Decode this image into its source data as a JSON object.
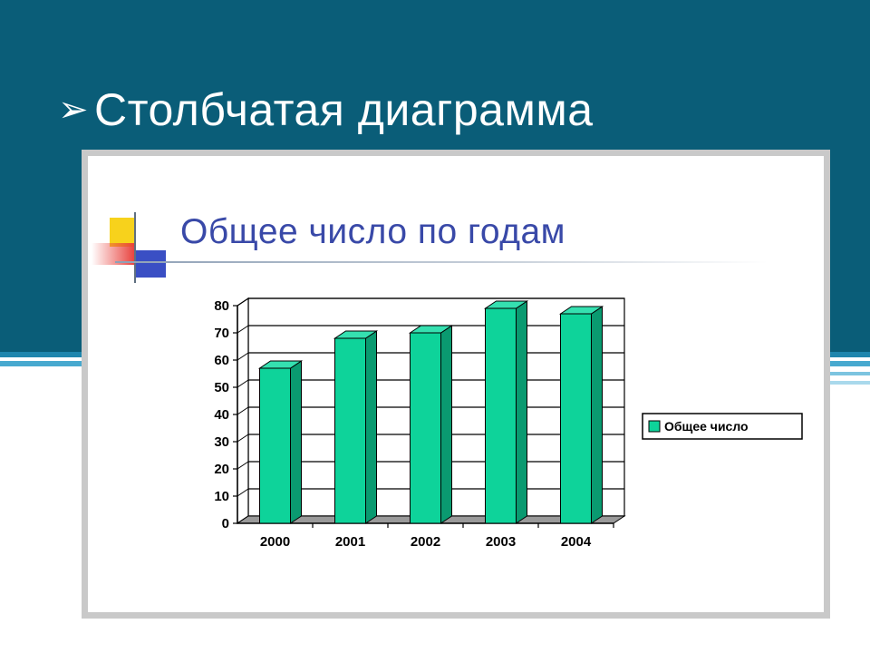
{
  "slide": {
    "title": "Столбчатая диаграмма",
    "bullet_icon": "arrow-bullet-icon",
    "colors": {
      "header": "#0a5d78",
      "stripe": "#48a9cf",
      "title_text": "#ffffff"
    }
  },
  "chart_data": {
    "type": "bar",
    "title": "Общее число по годам",
    "categories": [
      "2000",
      "2001",
      "2002",
      "2003",
      "2004"
    ],
    "series": [
      {
        "name": "Общее число",
        "values": [
          57,
          68,
          70,
          79,
          77
        ]
      }
    ],
    "ylim": [
      0,
      80
    ],
    "yticks": [
      0,
      10,
      20,
      30,
      40,
      50,
      60,
      70,
      80
    ],
    "xlabel": "",
    "ylabel": "",
    "grid": true,
    "legend_position": "right",
    "style": "3d-column",
    "colors": {
      "bar": "#0ed39a",
      "bar_side": "#0a9a70",
      "bar_top": "#35e0b0",
      "title": "#3949a8"
    }
  }
}
